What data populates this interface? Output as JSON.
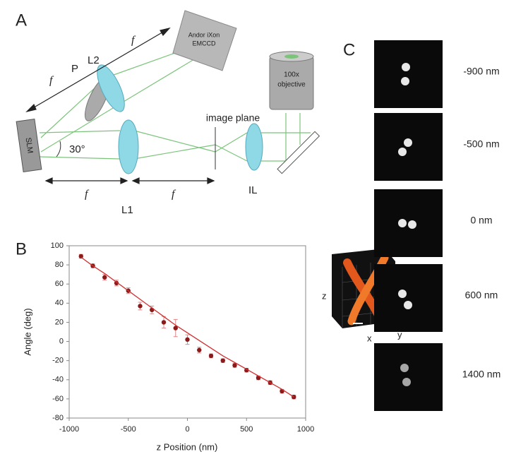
{
  "panel_labels": [
    "A",
    "B",
    "C"
  ],
  "diagram": {
    "camera": [
      "Andor iXon",
      "EMCCD"
    ],
    "objective": [
      "100x",
      "objective"
    ],
    "image_plane": "image plane",
    "slm": "SLM",
    "angle": "30°",
    "polarizer": "P",
    "lens2": "L2",
    "lens1": "L1",
    "tube_lens": "IL",
    "focal_labels": [
      "f",
      "f",
      "f",
      "f"
    ]
  },
  "chart_data": {
    "type": "scatter",
    "xlabel": "z Position (nm)",
    "ylabel": "Angle (deg)",
    "x": [
      -900,
      -800,
      -700,
      -600,
      -500,
      -400,
      -300,
      -200,
      -100,
      0,
      100,
      200,
      300,
      400,
      500,
      600,
      700,
      800,
      900
    ],
    "series": [
      {
        "color": "#8b1a1a",
        "values": [
          89,
          79,
          67,
          61,
          53,
          37,
          33,
          20,
          14,
          2,
          -9,
          -15,
          -20,
          -25,
          -30,
          -38,
          -43,
          -52,
          -58
        ],
        "errors": [
          2,
          2,
          3,
          3,
          3,
          4,
          4,
          6,
          9,
          5,
          3,
          2,
          2,
          2,
          2,
          2,
          2,
          2,
          2
        ]
      },
      {
        "color": "#d03030",
        "values": [
          88,
          79,
          71,
          62,
          53,
          44,
          35,
          26,
          17,
          9,
          1,
          -7,
          -15,
          -22,
          -29,
          -36,
          -43,
          -50,
          -58
        ]
      }
    ],
    "xlim": [
      -1000,
      1000
    ],
    "xticks": [
      -1000,
      -500,
      0,
      500,
      1000
    ],
    "ylim": [
      -80,
      100
    ],
    "yticks": [
      -80,
      -60,
      -40,
      -20,
      0,
      20,
      40,
      60,
      80,
      100
    ],
    "inset_axes": [
      "z",
      "x",
      "y"
    ]
  },
  "images": {
    "labels": [
      "-900 nm",
      "-500 nm",
      "0 nm",
      "600 nm",
      "1400 nm"
    ]
  }
}
